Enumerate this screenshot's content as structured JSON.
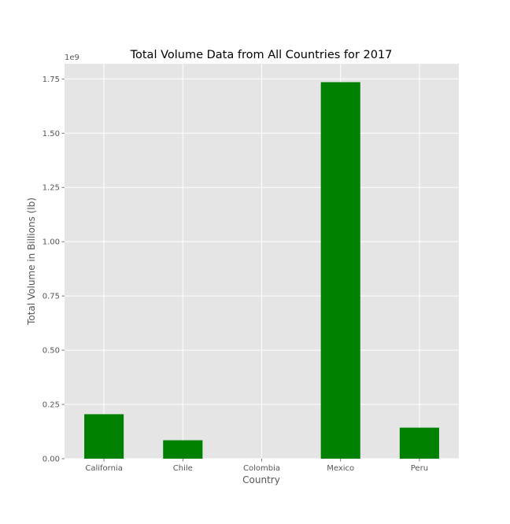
{
  "chart_data": {
    "type": "bar",
    "title": "Total Volume Data from All Countries for 2017",
    "xlabel": "Country",
    "ylabel": "Total Volume in Billions (lb)",
    "y_offset_label": "1e9",
    "categories": [
      "California",
      "Chile",
      "Colombia",
      "Mexico",
      "Peru"
    ],
    "values": [
      0.205,
      0.085,
      0.0,
      1.735,
      0.143
    ],
    "ylim": [
      0,
      1.82
    ],
    "yticks": [
      0.0,
      0.25,
      0.5,
      0.75,
      1.0,
      1.25,
      1.5,
      1.75
    ],
    "ytick_labels": [
      "0.00",
      "0.25",
      "0.50",
      "0.75",
      "1.00",
      "1.25",
      "1.50",
      "1.75"
    ],
    "grid": true,
    "colors": {
      "bar": "#008000",
      "plot_background": "#e5e5e5",
      "grid": "#ffffff"
    }
  }
}
